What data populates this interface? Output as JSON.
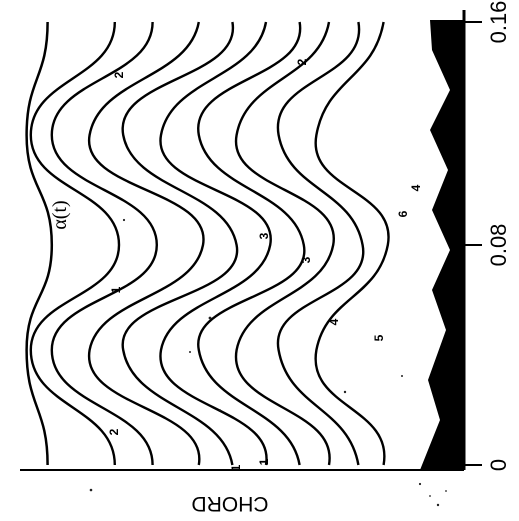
{
  "chart_data": {
    "type": "contour",
    "orientation": "rotated-180",
    "xlabel": "",
    "ylabel": "CHORD",
    "x_ticks": [
      "0",
      "0.08",
      "0.16"
    ],
    "x_range": [
      0,
      0.16
    ],
    "curve_label": "α(t)",
    "contour_labels": [
      "1",
      "2",
      "3",
      "1",
      "2",
      "3",
      "4",
      "5",
      "6",
      "4",
      "1",
      "2"
    ],
    "curves": [
      {
        "name": "α(t)",
        "values": [
          0.08,
          0.03,
          0.09,
          0.03,
          0.08
        ]
      },
      {
        "name": "contour-1",
        "values": [
          0.24,
          0.04,
          0.25,
          0.04,
          0.24
        ]
      },
      {
        "name": "contour-2",
        "values": [
          0.33,
          0.09,
          0.34,
          0.09,
          0.33
        ]
      },
      {
        "name": "contour-3",
        "values": [
          0.44,
          0.18,
          0.45,
          0.18,
          0.44
        ]
      },
      {
        "name": "contour-4",
        "values": [
          0.52,
          0.26,
          0.53,
          0.26,
          0.52
        ]
      },
      {
        "name": "contour-5",
        "values": [
          0.6,
          0.35,
          0.61,
          0.35,
          0.6
        ]
      },
      {
        "name": "contour-6",
        "values": [
          0.68,
          0.44,
          0.69,
          0.44,
          0.68
        ]
      },
      {
        "name": "contour-7",
        "values": [
          0.75,
          0.53,
          0.76,
          0.53,
          0.75
        ]
      },
      {
        "name": "contour-8",
        "values": [
          0.82,
          0.63,
          0.83,
          0.63,
          0.82
        ]
      },
      {
        "name": "contour-9",
        "values": [
          0.88,
          0.72,
          0.89,
          0.72,
          0.88
        ]
      }
    ],
    "grid": false,
    "legend": "none"
  }
}
